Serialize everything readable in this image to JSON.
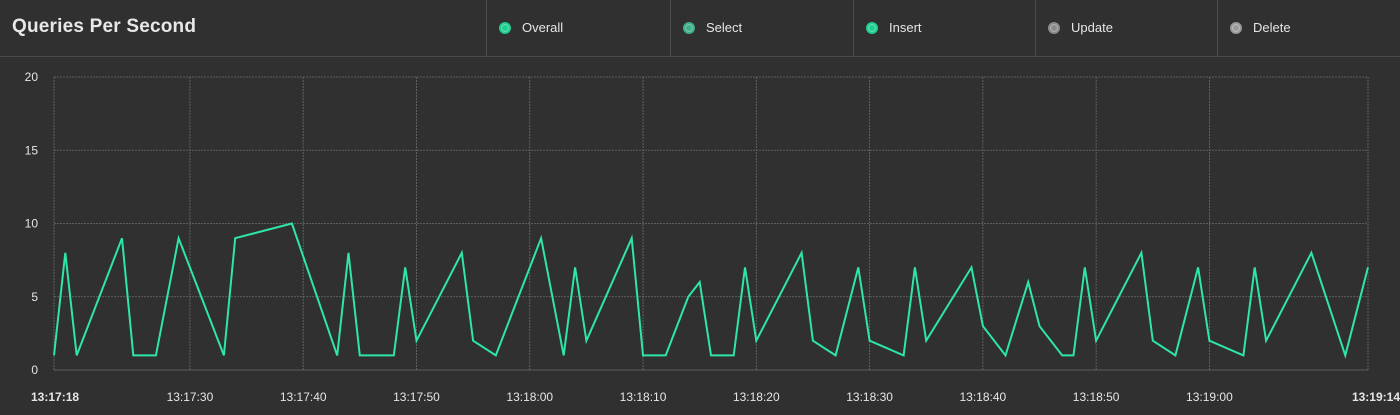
{
  "header": {
    "title": "Queries Per Second"
  },
  "legend": [
    {
      "label": "Overall",
      "color": "#1fcf8f",
      "icon": "circle-icon"
    },
    {
      "label": "Select",
      "color": "#3fae8a",
      "icon": "circle-icon"
    },
    {
      "label": "Insert",
      "color": "#1fcf8f",
      "icon": "circle-icon"
    },
    {
      "label": "Update",
      "color": "#8a8a8a",
      "icon": "circle-icon"
    },
    {
      "label": "Delete",
      "color": "#9a9a9a",
      "icon": "circle-icon"
    }
  ],
  "chart_data": {
    "type": "line",
    "line_color": "#2ee6a6",
    "grid": true,
    "ylim": [
      0,
      20
    ],
    "y_ticks": [
      "0",
      "5",
      "10",
      "15",
      "20"
    ],
    "x_start_label": "13:17:18",
    "x_end_label": "13:19:14",
    "x_tick_labels": [
      "13:17:30",
      "13:17:40",
      "13:17:50",
      "13:18:00",
      "13:18:10",
      "13:18:20",
      "13:18:30",
      "13:18:40",
      "13:18:50",
      "13:19:00"
    ],
    "series": [
      {
        "x": [
          "13:17:18",
          "13:17:19",
          "13:17:20",
          "13:17:24",
          "13:17:25",
          "13:17:27",
          "13:17:29",
          "13:17:33",
          "13:17:34",
          "13:17:39",
          "13:17:43",
          "13:17:44",
          "13:17:45",
          "13:17:48",
          "13:17:49",
          "13:17:50",
          "13:17:54",
          "13:17:55",
          "13:17:57",
          "13:18:01",
          "13:18:03",
          "13:18:04",
          "13:18:05",
          "13:18:09",
          "13:18:10",
          "13:18:12",
          "13:18:14",
          "13:18:15",
          "13:18:16",
          "13:18:18",
          "13:18:19",
          "13:18:20",
          "13:18:24",
          "13:18:25",
          "13:18:27",
          "13:18:29",
          "13:18:30",
          "13:18:33",
          "13:18:34",
          "13:18:35",
          "13:18:39",
          "13:18:40",
          "13:18:42",
          "13:18:44",
          "13:18:45",
          "13:18:47",
          "13:18:48",
          "13:18:49",
          "13:18:50",
          "13:18:54",
          "13:18:55",
          "13:18:57",
          "13:18:59",
          "13:19:00",
          "13:19:03",
          "13:19:04",
          "13:19:05",
          "13:19:09",
          "13:19:12",
          "13:19:14"
        ],
        "values": [
          1,
          8,
          1,
          9,
          1,
          1,
          9,
          1,
          9,
          10,
          1,
          8,
          1,
          1,
          7,
          2,
          8,
          2,
          1,
          9,
          1,
          7,
          2,
          9,
          1,
          1,
          5,
          6,
          1,
          1,
          7,
          2,
          8,
          2,
          1,
          7,
          2,
          1,
          7,
          2,
          7,
          3,
          1,
          6,
          3,
          1,
          1,
          7,
          2,
          8,
          2,
          1,
          7,
          2,
          1,
          7,
          2,
          8,
          1,
          7
        ]
      }
    ]
  }
}
